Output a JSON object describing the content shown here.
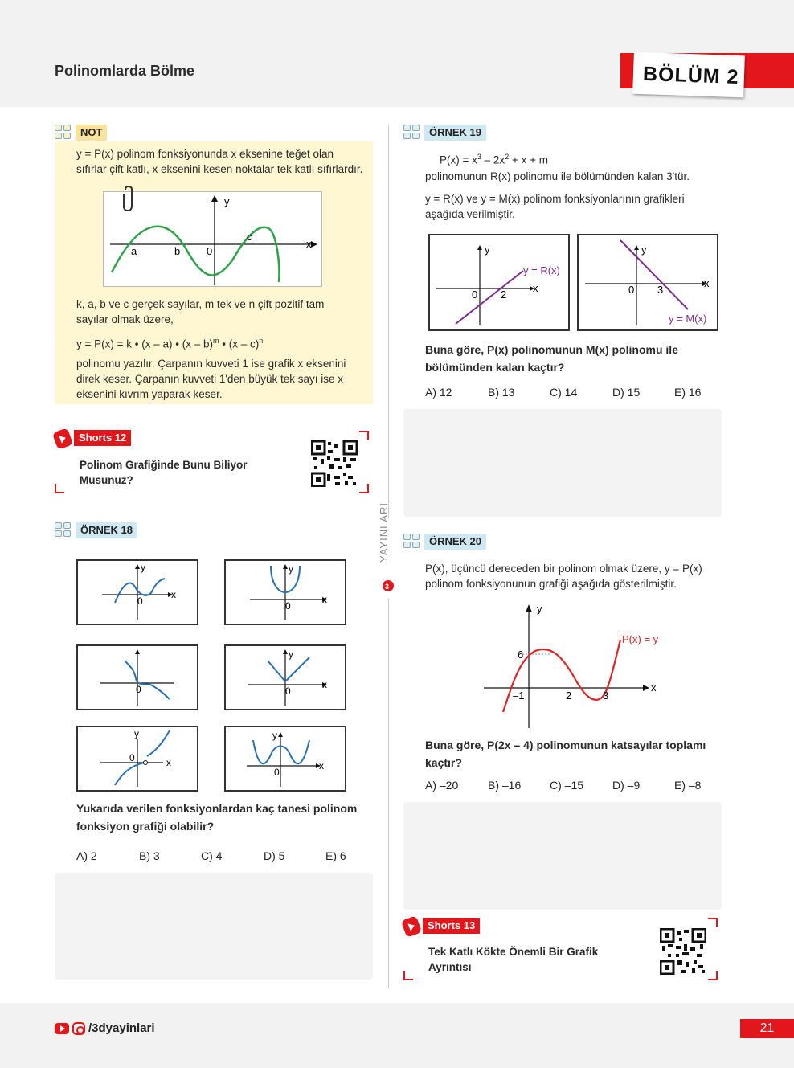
{
  "header": {
    "section_title": "Polinomlarda Bölme",
    "chapter_label": "BÖLÜM 2"
  },
  "note": {
    "tag": "NOT",
    "intro_line1": "y = P(x) polinom fonksiyonunda x eksenine teğet olan",
    "intro_line2": "sıfırlar çift katlı, x eksenini kesen noktalar tek katlı sıfırlardır.",
    "graph_labels": {
      "y": "y",
      "x": "x",
      "a": "a",
      "b": "b",
      "zero": "0",
      "c": "c"
    },
    "body_line1": "k, a, b ve c gerçek sayılar, m tek ve n çift pozitif tam",
    "body_line2": "sayılar olmak üzere,",
    "formula_main": "y = P(x) = k • (x – a) • (x – b)",
    "formula_exp_m": "m",
    "formula_mid": " • (x – c)",
    "formula_exp_n": "n",
    "tail_line1": "polinomu yazılır. Çarpanın kuvveti 1 ise grafik x eksenini",
    "tail_line2": "direk keser. Çarpanın kuvveti 1'den büyük tek sayı ise x",
    "tail_line3": "eksenini kıvrım yaparak keser."
  },
  "shorts12": {
    "tag": "Shorts 12",
    "line1": "Polinom Grafiğinde Bunu Biliyor",
    "line2": "Musunuz?"
  },
  "ornek18": {
    "tag": "ÖRNEK 18",
    "graph_labels": {
      "x": "x",
      "y": "y",
      "zero": "0"
    },
    "question_line1": "Yukarıda verilen fonksiyonlardan kaç tanesi polinom",
    "question_line2": "fonksiyon grafiği olabilir?",
    "choices": [
      "A) 2",
      "B) 3",
      "C) 4",
      "D) 5",
      "E) 6"
    ]
  },
  "ornek19": {
    "tag": "ÖRNEK 19",
    "poly_prefix": "P(x) = x",
    "poly_exp1": "3",
    "poly_mid": " – 2x",
    "poly_exp2": "2",
    "poly_suffix": " + x + m",
    "line2": "polinomunun R(x) polinomu ile bölümünden kalan 3'tür.",
    "line3": "y = R(x) ve y = M(x) polinom fonksiyonlarının grafikleri",
    "line4": "aşağıda verilmiştir.",
    "graph1": {
      "y": "y",
      "x": "x",
      "zero": "0",
      "two": "2",
      "label": "y = R(x)"
    },
    "graph2": {
      "y": "y",
      "x": "x",
      "zero": "0",
      "three": "3",
      "label": "y = M(x)"
    },
    "question_line1": "Buna göre, P(x) polinomunun M(x) polinomu ile",
    "question_line2": "bölümünden kalan kaçtır?",
    "choices": [
      "A) 12",
      "B) 13",
      "C) 14",
      "D) 15",
      "E) 16"
    ]
  },
  "ornek20": {
    "tag": "ÖRNEK 20",
    "line1": "P(x), üçüncü dereceden bir polinom olmak üzere, y = P(x)",
    "line2": "polinom fonksiyonunun grafiği aşağıda gösterilmiştir.",
    "graph": {
      "y": "y",
      "x": "x",
      "six": "6",
      "minus_one": "–1",
      "two": "2",
      "three": "3",
      "label": "P(x) = y"
    },
    "question_line1": "Buna göre, P(2x – 4) polinomunun katsayılar toplamı",
    "question_line2": "kaçtır?",
    "choices": [
      "A) –20",
      "B) –16",
      "C) –15",
      "D) –9",
      "E) –8"
    ]
  },
  "shorts13": {
    "tag": "Shorts 13",
    "line1": "Tek Katlı Kökte Önemli Bir Grafik",
    "line2": "Ayrıntısı"
  },
  "side_brand": "YAYINLARI",
  "footer": {
    "social_handle": "/3dyayinlari",
    "page_number": "21"
  },
  "colors": {
    "accent_red": "#e3161b",
    "note_background": "#fff6d2",
    "curve_green": "#2ea14a",
    "curve_blue": "#2a6fb0",
    "curve_purple": "#7b2d8e",
    "curve_red": "#d62828"
  }
}
